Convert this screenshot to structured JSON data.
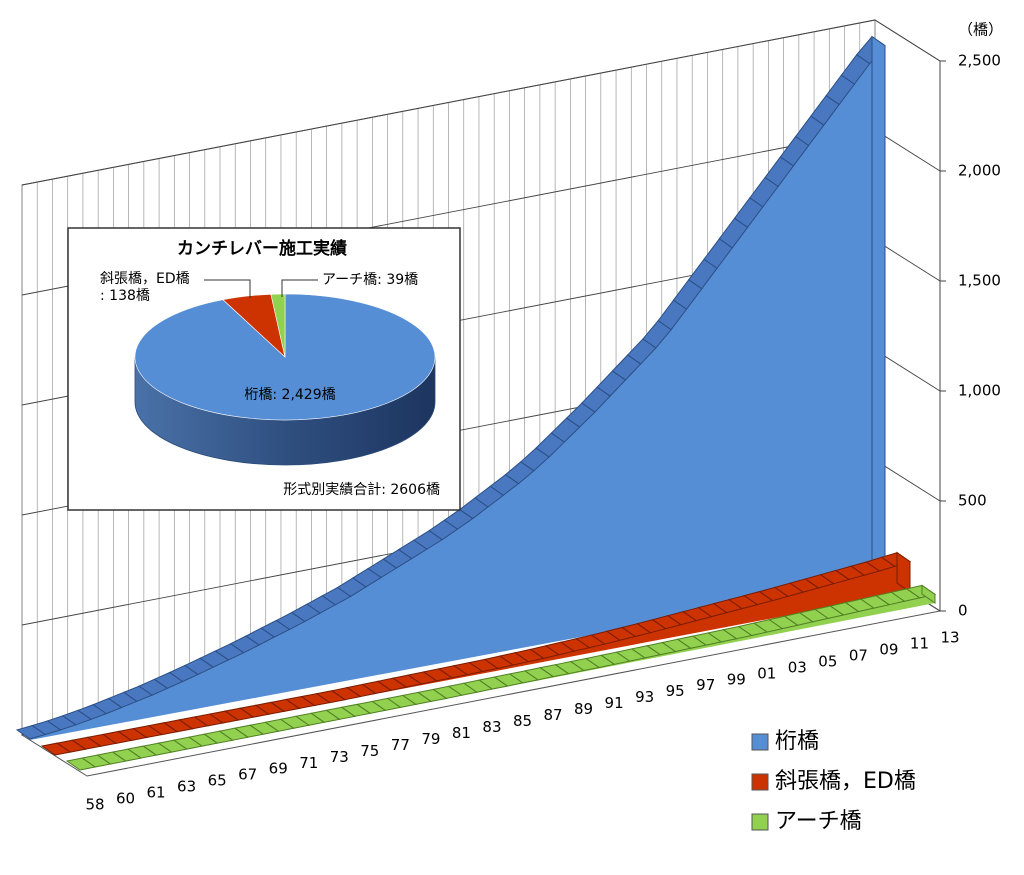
{
  "chart_data": [
    {
      "type": "area3d",
      "unit_label": "（橋）",
      "categories": [
        "58",
        null,
        "60",
        null,
        "61",
        null,
        "63",
        null,
        "65",
        null,
        "67",
        null,
        "69",
        null,
        "71",
        null,
        "73",
        null,
        "75",
        null,
        "77",
        null,
        "79",
        null,
        "81",
        null,
        "83",
        null,
        "85",
        null,
        "87",
        null,
        "89",
        null,
        "91",
        null,
        "93",
        null,
        "95",
        null,
        "97",
        null,
        "99",
        null,
        "01",
        null,
        "03",
        null,
        "05",
        null,
        "07",
        null,
        "09",
        null,
        "11",
        null,
        "13"
      ],
      "series": [
        {
          "name": "桁橋",
          "color": "#558ed5",
          "values": [
            5,
            12,
            20,
            30,
            42,
            55,
            70,
            85,
            100,
            118,
            136,
            155,
            175,
            195,
            215,
            237,
            260,
            282,
            305,
            330,
            355,
            380,
            410,
            440,
            470,
            500,
            530,
            560,
            595,
            630,
            670,
            710,
            750,
            795,
            845,
            900,
            955,
            1010,
            1070,
            1130,
            1190,
            1250,
            1320,
            1400,
            1480,
            1560,
            1640,
            1720,
            1800,
            1880,
            1960,
            2040,
            2120,
            2200,
            2280,
            2360,
            2429
          ]
        },
        {
          "name": "斜張橋，ED橋",
          "color": "#cc3300",
          "values": [
            0,
            0,
            0,
            0,
            0,
            0,
            0,
            0,
            0,
            0,
            0,
            0,
            0,
            0,
            0,
            0,
            0,
            0,
            0,
            0,
            1,
            2,
            3,
            4,
            5,
            6,
            7,
            8,
            9,
            10,
            12,
            14,
            16,
            19,
            22,
            25,
            28,
            32,
            36,
            40,
            45,
            50,
            55,
            60,
            65,
            70,
            75,
            80,
            86,
            92,
            98,
            104,
            110,
            116,
            122,
            130,
            138
          ]
        },
        {
          "name": "アーチ橋",
          "color": "#92d050",
          "values": [
            0,
            0,
            0,
            0,
            0,
            0,
            0,
            0,
            0,
            0,
            0,
            0,
            0,
            0,
            0,
            0,
            0,
            0,
            0,
            0,
            0,
            0,
            0,
            0,
            0,
            1,
            1,
            2,
            2,
            3,
            3,
            4,
            4,
            5,
            5,
            6,
            7,
            8,
            9,
            10,
            11,
            12,
            13,
            14,
            15,
            17,
            19,
            21,
            23,
            25,
            27,
            29,
            31,
            33,
            35,
            37,
            39
          ]
        }
      ],
      "ylim": [
        0,
        2500
      ],
      "yticks": [
        0,
        500,
        {
          "value": 1000,
          "label": "1,000"
        },
        {
          "value": 1500,
          "label": "1,500"
        },
        {
          "value": 2000,
          "label": "2,000"
        },
        {
          "value": 2500,
          "label": "2,500"
        }
      ],
      "grid": true,
      "legend": "bottom-right"
    },
    {
      "type": "pie",
      "title": "カンチレバー施工実績",
      "values": [
        2429,
        138,
        39
      ],
      "value_labels": [
        "桁橋: 2,429橋",
        "斜張橋，ED橋\n: 138橋",
        "アーチ橋: 39橋"
      ],
      "colors": [
        "#558ed5",
        "#cc3300",
        "#92d050"
      ],
      "note": "形式別実績合計: 2606橋"
    }
  ]
}
